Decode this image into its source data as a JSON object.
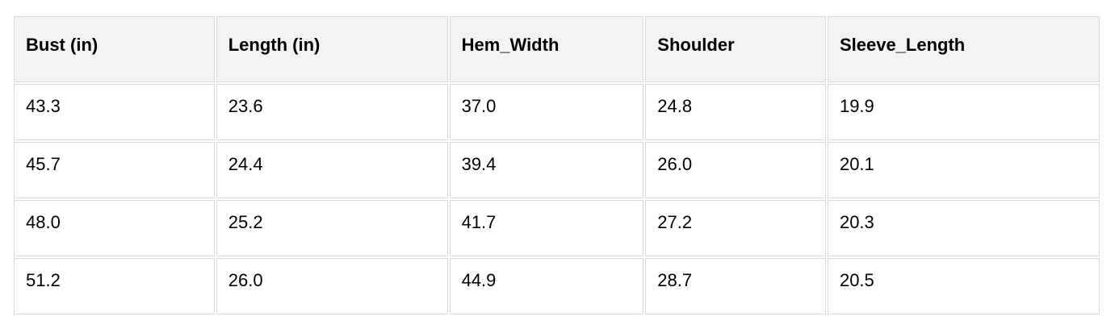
{
  "chart_data": {
    "type": "table",
    "columns": [
      "Bust (in)",
      "Length (in)",
      "Hem_Width",
      "Shoulder",
      "Sleeve_Length"
    ],
    "rows": [
      [
        "43.3",
        "23.6",
        "37.0",
        "24.8",
        "19.9"
      ],
      [
        "45.7",
        "24.4",
        "39.4",
        "26.0",
        "20.1"
      ],
      [
        "48.0",
        "25.2",
        "41.7",
        "27.2",
        "20.3"
      ],
      [
        "51.2",
        "26.0",
        "44.9",
        "28.7",
        "20.5"
      ]
    ],
    "title": "",
    "layout_hints": {
      "header_position": "top",
      "grid": "on",
      "text_align": "left"
    }
  },
  "colors": {
    "header_background": "#f3f3f3",
    "cell_background": "#ffffff",
    "border": "#d9d9d9",
    "text": "#000000",
    "page_background": "#ffffff"
  }
}
